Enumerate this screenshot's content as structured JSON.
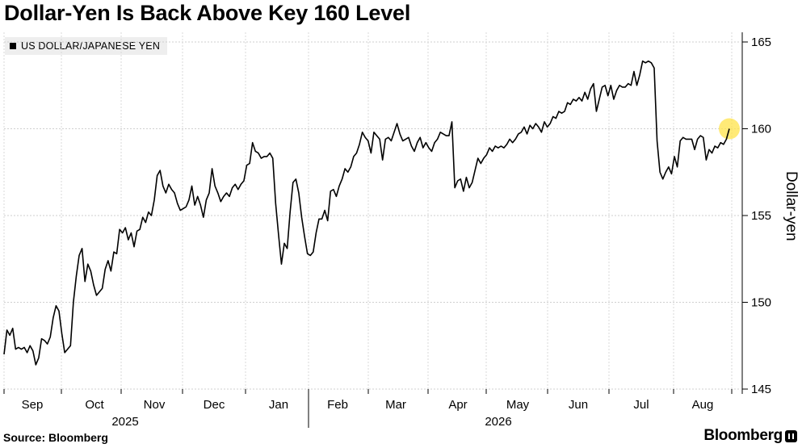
{
  "chart_data": {
    "type": "line",
    "title": "Dollar-Yen Is Back Above Key 160 Level",
    "ylabel": "Dollar-yen",
    "ylim": [
      145,
      165
    ],
    "yticks": [
      145,
      150,
      155,
      160,
      165
    ],
    "y_axis_side": "right",
    "grid": true,
    "legend_position": "top-left",
    "months": [
      "Sep",
      "Oct",
      "Nov",
      "Dec",
      "Jan",
      "Feb",
      "Mar",
      "Apr",
      "May",
      "Jun",
      "Jul",
      "Aug"
    ],
    "years": [
      "2025",
      "2026"
    ],
    "series": [
      {
        "name": "US DOLLAR/JAPANESE YEN",
        "color": "#000000",
        "values": [
          147.0,
          148.4,
          148.1,
          148.5,
          147.3,
          147.4,
          147.3,
          147.4,
          147.1,
          147.5,
          147.2,
          146.4,
          146.8,
          147.9,
          147.8,
          147.6,
          148.0,
          149.1,
          149.8,
          149.5,
          148.2,
          147.1,
          147.3,
          147.5,
          150.0,
          151.5,
          152.7,
          153.1,
          151.2,
          152.2,
          151.8,
          151.0,
          150.4,
          150.6,
          150.8,
          151.9,
          152.4,
          151.8,
          152.9,
          152.8,
          154.2,
          154.0,
          154.3,
          153.6,
          154.0,
          153.2,
          154.1,
          154.2,
          154.9,
          154.6,
          155.2,
          155.0,
          155.9,
          157.3,
          157.6,
          156.7,
          156.3,
          156.8,
          156.5,
          156.3,
          155.7,
          155.3,
          155.4,
          155.5,
          155.9,
          156.7,
          155.6,
          156.1,
          155.6,
          154.9,
          155.9,
          156.3,
          157.7,
          156.7,
          156.3,
          155.8,
          156.1,
          156.3,
          156.1,
          156.6,
          156.8,
          156.5,
          156.8,
          157.0,
          157.9,
          158.0,
          159.2,
          158.7,
          158.6,
          158.3,
          158.4,
          158.4,
          158.6,
          158.3,
          155.7,
          153.9,
          152.2,
          153.4,
          153.1,
          155.2,
          156.9,
          157.1,
          156.3,
          154.9,
          153.8,
          152.8,
          152.7,
          152.9,
          154.0,
          154.8,
          154.8,
          155.3,
          154.7,
          156.4,
          156.5,
          156.1,
          156.7,
          157.1,
          157.7,
          157.5,
          157.8,
          158.4,
          158.6,
          159.1,
          159.8,
          159.5,
          159.3,
          158.6,
          159.8,
          159.6,
          159.4,
          158.2,
          159.4,
          159.5,
          159.3,
          159.8,
          160.3,
          159.7,
          159.3,
          159.4,
          159.5,
          159.0,
          158.7,
          159.2,
          159.5,
          158.9,
          159.2,
          158.9,
          158.7,
          159.2,
          159.4,
          159.8,
          159.7,
          159.6,
          159.6,
          160.4,
          156.6,
          157.0,
          157.1,
          156.4,
          157.2,
          156.6,
          156.9,
          157.6,
          158.3,
          158.0,
          158.3,
          158.5,
          158.9,
          158.7,
          159.0,
          158.9,
          159.0,
          158.9,
          159.1,
          159.4,
          159.2,
          159.4,
          159.7,
          159.8,
          160.1,
          159.7,
          160.2,
          160.0,
          160.3,
          160.1,
          159.8,
          160.4,
          160.1,
          160.3,
          160.7,
          160.6,
          161.0,
          160.9,
          161.0,
          161.5,
          161.4,
          161.7,
          161.6,
          161.8,
          161.6,
          162.1,
          161.7,
          162.3,
          162.6,
          161.0,
          161.7,
          162.4,
          162.5,
          161.9,
          162.5,
          161.7,
          162.2,
          162.5,
          162.4,
          162.4,
          162.6,
          162.5,
          163.3,
          162.5,
          163.1,
          163.9,
          163.8,
          163.9,
          163.8,
          163.5,
          159.3,
          157.5,
          157.1,
          157.5,
          157.8,
          157.4,
          158.4,
          157.8,
          159.3,
          159.5,
          159.4,
          159.4,
          159.4,
          158.8,
          159.4,
          159.6,
          159.5,
          158.2,
          158.8,
          158.6,
          159.0,
          158.9,
          159.2,
          159.1,
          159.4,
          160.0
        ]
      }
    ],
    "last_point_marker_color": "#ffe34a"
  },
  "source": "Source: Bloomberg",
  "brand": "Bloomberg"
}
